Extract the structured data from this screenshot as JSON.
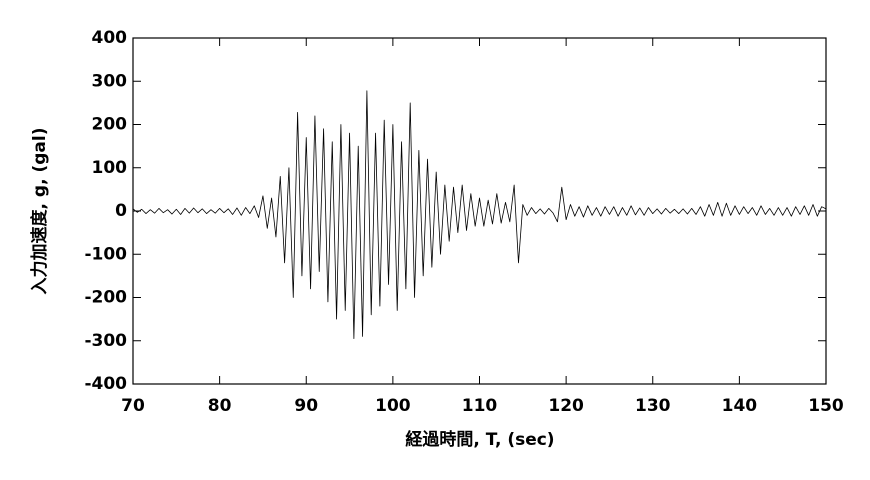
{
  "chart_data": {
    "type": "line",
    "xlabel": "経過時間, T, (sec)",
    "ylabel": "入力加速度, g, (gal)",
    "xlim": [
      70,
      150
    ],
    "xticks": [
      70,
      80,
      90,
      100,
      110,
      120,
      130,
      140,
      150
    ],
    "ylim": [
      -400,
      400
    ],
    "yticks": [
      -400,
      -300,
      -200,
      -100,
      0,
      100,
      200,
      300,
      400
    ],
    "grid": false,
    "x": [
      70,
      70.5,
      71,
      71.5,
      72,
      72.5,
      73,
      73.5,
      74,
      74.5,
      75,
      75.5,
      76,
      76.5,
      77,
      77.5,
      78,
      78.5,
      79,
      79.5,
      80,
      80.5,
      81,
      81.5,
      82,
      82.5,
      83,
      83.5,
      84,
      84.5,
      85,
      85.5,
      86,
      86.5,
      87,
      87.5,
      88,
      88.5,
      89,
      89.5,
      90,
      90.5,
      91,
      91.5,
      92,
      92.5,
      93,
      93.5,
      94,
      94.5,
      95,
      95.5,
      96,
      96.5,
      97,
      97.5,
      98,
      98.5,
      99,
      99.5,
      100,
      100.5,
      101,
      101.5,
      102,
      102.5,
      103,
      103.5,
      104,
      104.5,
      105,
      105.5,
      106,
      106.5,
      107,
      107.5,
      108,
      108.5,
      109,
      109.5,
      110,
      110.5,
      111,
      111.5,
      112,
      112.5,
      113,
      113.5,
      114,
      114.5,
      115,
      115.5,
      116,
      116.5,
      117,
      117.5,
      118,
      118.5,
      119,
      119.5,
      120,
      120.5,
      121,
      121.5,
      122,
      122.5,
      123,
      123.5,
      124,
      124.5,
      125,
      125.5,
      126,
      126.5,
      127,
      127.5,
      128,
      128.5,
      129,
      129.5,
      130,
      130.5,
      131,
      131.5,
      132,
      132.5,
      133,
      133.5,
      134,
      134.5,
      135,
      135.5,
      136,
      136.5,
      137,
      137.5,
      138,
      138.5,
      139,
      139.5,
      140,
      140.5,
      141,
      141.5,
      142,
      142.5,
      143,
      143.5,
      144,
      144.5,
      145,
      145.5,
      146,
      146.5,
      147,
      147.5,
      148,
      148.5,
      149,
      149.5,
      150
    ],
    "series": [
      {
        "color": "#000000",
        "values": [
          5,
          -3,
          4,
          -6,
          3,
          -5,
          6,
          -4,
          3,
          -7,
          4,
          -8,
          6,
          -5,
          7,
          -4,
          5,
          -6,
          3,
          -5,
          6,
          -4,
          5,
          -8,
          7,
          -10,
          8,
          -6,
          12,
          -15,
          35,
          -40,
          30,
          -60,
          80,
          -120,
          100,
          -200,
          228,
          -150,
          170,
          -180,
          220,
          -140,
          190,
          -210,
          160,
          -250,
          200,
          -230,
          180,
          -295,
          150,
          -290,
          278,
          -240,
          180,
          -220,
          210,
          -170,
          200,
          -230,
          160,
          -180,
          250,
          -200,
          140,
          -150,
          120,
          -130,
          90,
          -100,
          60,
          -70,
          55,
          -50,
          60,
          -45,
          40,
          -35,
          30,
          -35,
          25,
          -30,
          40,
          -28,
          20,
          -25,
          60,
          -120,
          15,
          -10,
          8,
          -6,
          5,
          -7,
          6,
          -5,
          -25,
          55,
          -20,
          15,
          -12,
          10,
          -14,
          12,
          -10,
          8,
          -12,
          10,
          -8,
          10,
          -12,
          8,
          -10,
          12,
          -9,
          7,
          -10,
          8,
          -6,
          5,
          -7,
          6,
          -5,
          4,
          -6,
          5,
          -7,
          6,
          -8,
          10,
          -12,
          15,
          -10,
          20,
          -12,
          18,
          -10,
          12,
          -8,
          10,
          -6,
          8,
          -10,
          12,
          -8,
          6,
          -10,
          8,
          -10,
          8,
          -12,
          10,
          -8,
          12,
          -10,
          15,
          -12,
          10,
          5
        ]
      }
    ]
  }
}
